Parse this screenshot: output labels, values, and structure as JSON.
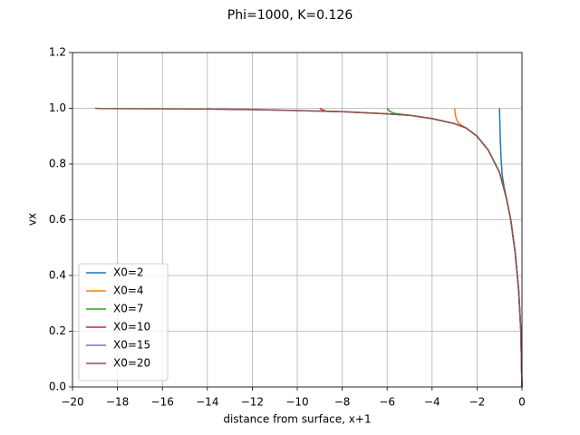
{
  "chart_data": {
    "type": "line",
    "title": "Phi=1000, K=0.126",
    "x_label": "distance from surface, x+1",
    "y_label": "vx",
    "xlim": [
      -20,
      0
    ],
    "ylim": [
      0,
      1.2
    ],
    "xticks": [
      {
        "value": -20,
        "label": "−20"
      },
      {
        "value": -18,
        "label": "−18"
      },
      {
        "value": -16,
        "label": "−16"
      },
      {
        "value": -14,
        "label": "−14"
      },
      {
        "value": -12,
        "label": "−12"
      },
      {
        "value": -10,
        "label": "−10"
      },
      {
        "value": -8,
        "label": "−8"
      },
      {
        "value": -6,
        "label": "−6"
      },
      {
        "value": -4,
        "label": "−4"
      },
      {
        "value": -2,
        "label": "−2"
      },
      0
    ],
    "yticks": [
      {
        "value": 0,
        "label": "0.0"
      },
      0.2,
      0.4,
      0.6,
      0.8,
      {
        "value": 1,
        "label": "1.0"
      },
      1.2
    ],
    "grid": true,
    "legend": "lower left",
    "series": [
      {
        "name": "X0=2",
        "color": "#1f77b4",
        "x": [
          -1,
          -0.97,
          -0.93,
          -0.88,
          -0.8,
          -0.7,
          -0.5,
          -0.3,
          -0.15,
          -0.05,
          0
        ],
        "values": [
          1,
          0.9,
          0.82,
          0.76,
          0.72,
          0.68,
          0.6,
          0.48,
          0.35,
          0.2,
          0
        ]
      },
      {
        "name": "X0=4",
        "color": "#ff7f0e",
        "x": [
          -3,
          -2.95,
          -2.85,
          -2.7,
          -2.5,
          -2,
          -1.5,
          -1,
          -0.7,
          -0.5,
          -0.3,
          -0.15,
          -0.05,
          0
        ],
        "values": [
          1,
          0.97,
          0.95,
          0.94,
          0.93,
          0.9,
          0.85,
          0.77,
          0.68,
          0.6,
          0.48,
          0.35,
          0.2,
          0
        ]
      },
      {
        "name": "X0=7",
        "color": "#2ca02c",
        "x": [
          -6,
          -5.9,
          -5.7,
          -5,
          -4,
          -3,
          -2.5,
          -2,
          -1.5,
          -1,
          -0.7,
          -0.5,
          -0.3,
          -0.15,
          -0.05,
          0
        ],
        "values": [
          1,
          0.99,
          0.982,
          0.975,
          0.963,
          0.945,
          0.93,
          0.9,
          0.85,
          0.77,
          0.68,
          0.6,
          0.48,
          0.35,
          0.2,
          0
        ]
      },
      {
        "name": "X0=10",
        "color": "#d62728",
        "x": [
          -9,
          -8.9,
          -8.7,
          -8,
          -6,
          -5,
          -4,
          -3,
          -2.5,
          -2,
          -1.5,
          -1,
          -0.7,
          -0.5,
          -0.3,
          -0.15,
          -0.05,
          0
        ],
        "values": [
          1,
          0.995,
          0.99,
          0.988,
          0.98,
          0.975,
          0.963,
          0.945,
          0.93,
          0.9,
          0.85,
          0.77,
          0.68,
          0.6,
          0.48,
          0.35,
          0.2,
          0
        ]
      },
      {
        "name": "X0=15",
        "color": "#9467bd",
        "x": [
          -14,
          -13.9,
          -12,
          -10,
          -8,
          -6,
          -5,
          -4,
          -3,
          -2.5,
          -2,
          -1.5,
          -1,
          -0.7,
          -0.5,
          -0.3,
          -0.15,
          -0.05,
          0
        ],
        "values": [
          1,
          0.998,
          0.996,
          0.992,
          0.988,
          0.98,
          0.975,
          0.963,
          0.945,
          0.93,
          0.9,
          0.85,
          0.77,
          0.68,
          0.6,
          0.48,
          0.35,
          0.2,
          0
        ]
      },
      {
        "name": "X0=20",
        "color": "#8c564b",
        "x": [
          -19,
          -18.8,
          -16,
          -14,
          -12,
          -10,
          -8,
          -6,
          -5,
          -4,
          -3,
          -2.5,
          -2,
          -1.5,
          -1,
          -0.7,
          -0.5,
          -0.3,
          -0.15,
          -0.05,
          0
        ],
        "values": [
          1,
          0.999,
          0.998,
          0.997,
          0.995,
          0.992,
          0.988,
          0.98,
          0.975,
          0.963,
          0.945,
          0.93,
          0.9,
          0.85,
          0.77,
          0.68,
          0.6,
          0.48,
          0.35,
          0.2,
          0
        ]
      }
    ]
  }
}
